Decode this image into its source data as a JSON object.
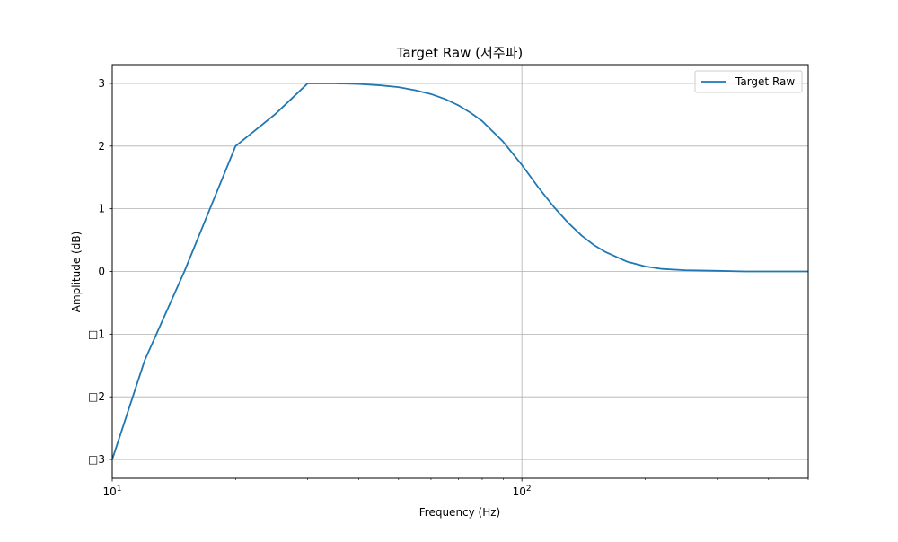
{
  "chart_data": {
    "type": "line",
    "title": "Target Raw (저주파)",
    "xlabel": "Frequency (Hz)",
    "ylabel": "Amplitude (dB)",
    "xscale": "log",
    "xlim": [
      10,
      500
    ],
    "ylim": [
      -3.3,
      3.3
    ],
    "grid": true,
    "legend_position": "top-right",
    "x_ticks": [
      {
        "value": 10,
        "base": "10",
        "exp": "1"
      },
      {
        "value": 100,
        "base": "10",
        "exp": "2"
      }
    ],
    "y_ticks": [
      {
        "value": 3,
        "label": "3"
      },
      {
        "value": 2,
        "label": "2"
      },
      {
        "value": 1,
        "label": "1"
      },
      {
        "value": 0,
        "label": "0"
      },
      {
        "value": -1,
        "label": "□1"
      },
      {
        "value": -2,
        "label": "□2"
      },
      {
        "value": -3,
        "label": "□3"
      }
    ],
    "series": [
      {
        "name": "Target Raw",
        "color": "#1f77b4",
        "x": [
          10,
          12,
          15,
          20,
          25,
          30,
          35,
          40,
          45,
          50,
          55,
          60,
          65,
          70,
          75,
          80,
          90,
          100,
          110,
          120,
          130,
          140,
          150,
          160,
          180,
          200,
          220,
          250,
          300,
          350,
          400,
          500
        ],
        "y": [
          -3.0,
          -1.42,
          0.0,
          2.0,
          2.51,
          3.0,
          3.0,
          2.99,
          2.97,
          2.94,
          2.89,
          2.83,
          2.75,
          2.65,
          2.53,
          2.4,
          2.07,
          1.7,
          1.33,
          1.02,
          0.77,
          0.57,
          0.42,
          0.31,
          0.16,
          0.08,
          0.04,
          0.02,
          0.01,
          0.0,
          0.0,
          0.0
        ]
      }
    ]
  }
}
